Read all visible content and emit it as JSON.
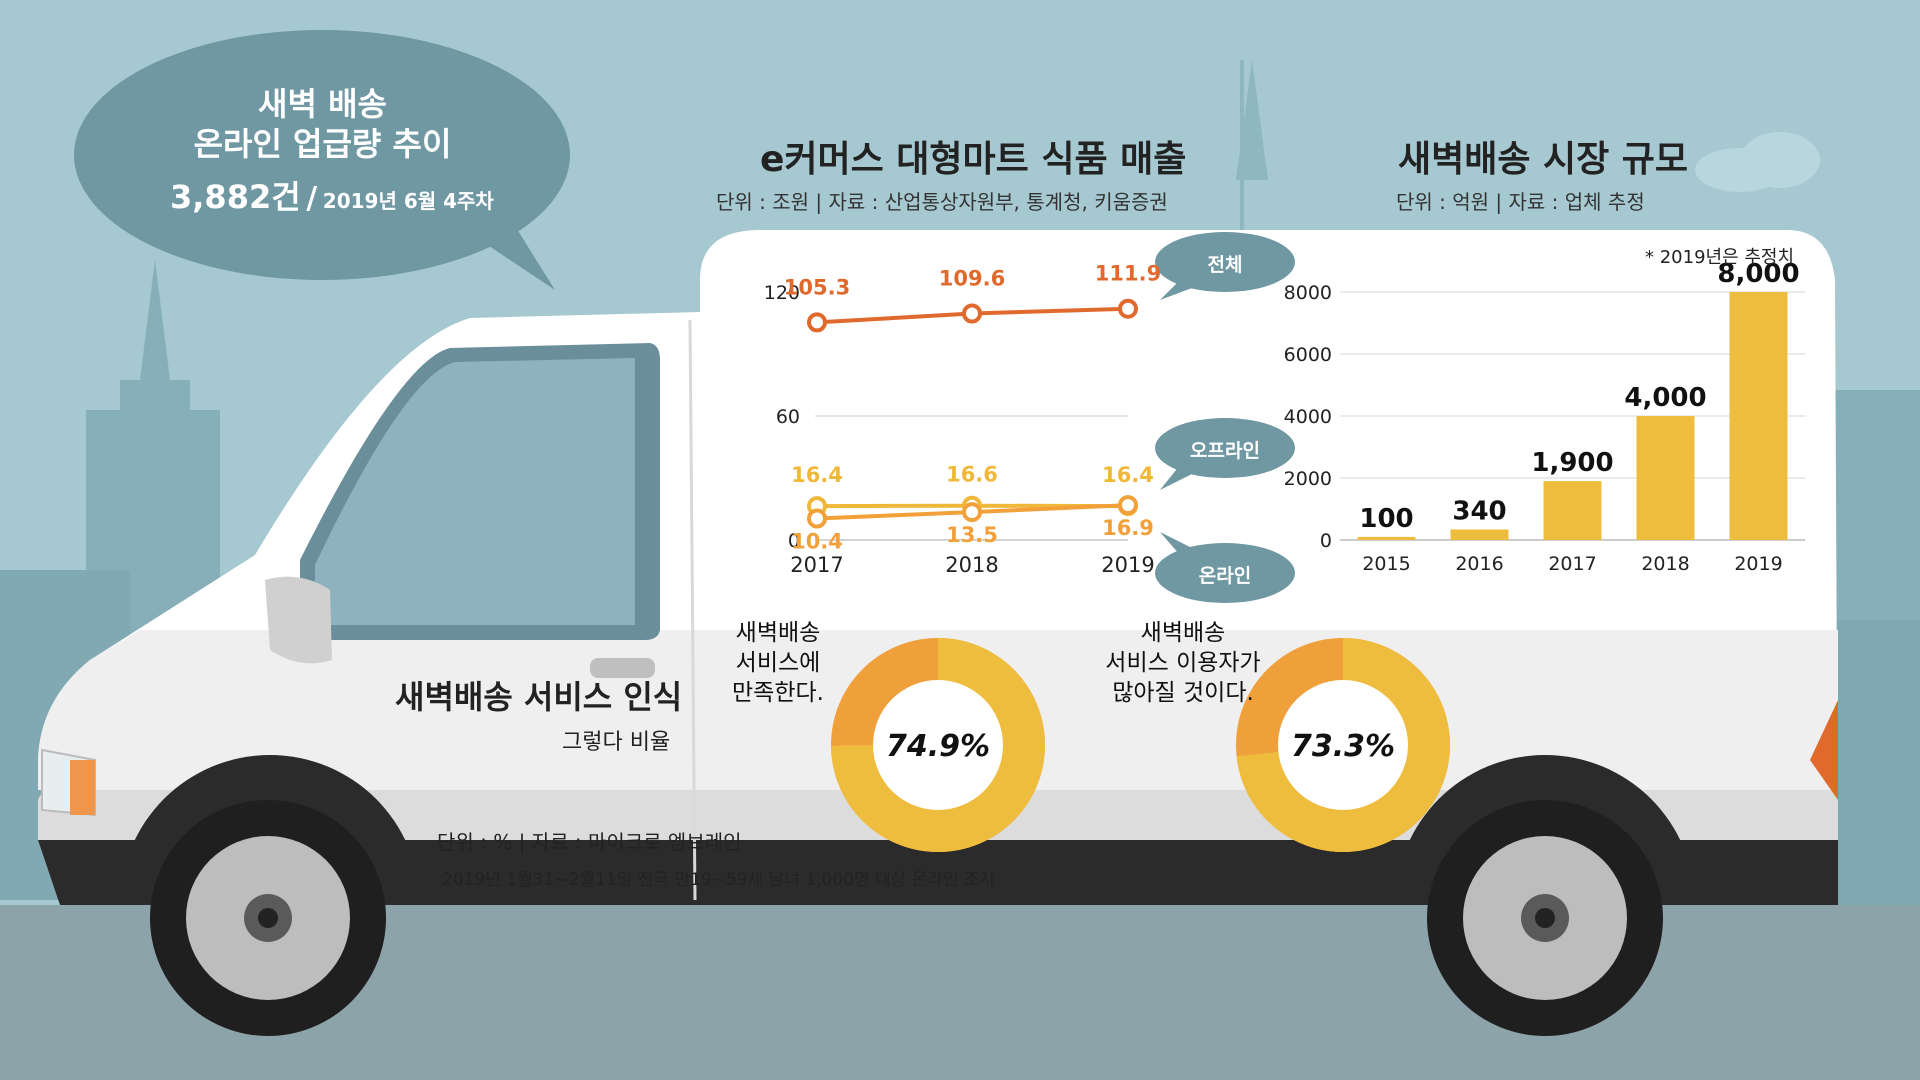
{
  "colors": {
    "sky": "#a5c8d1",
    "bubble": "#6f98a3",
    "total_line": "#e06a2d",
    "offline_line": "#f0b838",
    "online_line": "#f2a03a",
    "bar": "#efbd3e",
    "donut_main": "#efbd3e",
    "donut_rest": "#f0a03a"
  },
  "bubble": {
    "line1": "새벽 배송",
    "line2": "온라인 업급량 추이",
    "count": "3,882건",
    "slash": "/",
    "date": "2019년 6월 4주차"
  },
  "ecommerce": {
    "title": "e커머스 대형마트 식품 매출",
    "subtitle": "단위 : 조원  |   자료 : 산업통상자원부, 통계청, 키움증권"
  },
  "market": {
    "title": "새벽배송 시장 규모",
    "subtitle": "단위 : 억원  |   자료 : 업체 추정",
    "note": "* 2019년은 추정치"
  },
  "survey": {
    "title": "새벽배송 서비스 인식",
    "subtitle": "그렇다 비율",
    "source": "단위 : %  |  자료 : 마이크로 엠브레인",
    "footnote": "2019년 1월31~2월11일  전국 만19~59세 남녀 1,000명 대상 온라인 조사"
  },
  "chart_data": [
    {
      "type": "line",
      "x": [
        "2017",
        "2018",
        "2019"
      ],
      "yticks": [
        "120",
        "60",
        "0"
      ],
      "ylim": [
        0,
        120
      ],
      "series": [
        {
          "name": "전체",
          "values": [
            105.3,
            109.6,
            111.9
          ],
          "labels": [
            "105.3",
            "109.6",
            "111.9"
          ]
        },
        {
          "name": "오프라인",
          "values": [
            16.4,
            16.6,
            16.4
          ],
          "labels": [
            "16.4",
            "16.6",
            "16.4"
          ]
        },
        {
          "name": "온라인",
          "values": [
            10.4,
            13.5,
            16.9
          ],
          "labels": [
            "10.4",
            "13.5",
            "16.9"
          ]
        }
      ]
    },
    {
      "type": "bar",
      "categories": [
        "2015",
        "2016",
        "2017",
        "2018",
        "2019"
      ],
      "values": [
        100,
        340,
        1900,
        4000,
        8000
      ],
      "labels": [
        "100",
        "340",
        "1,900",
        "4,000",
        "8,000"
      ],
      "yticks": [
        "8000",
        "6000",
        "4000",
        "2000",
        "0"
      ],
      "ylim": [
        0,
        8000
      ],
      "grid": true
    },
    {
      "type": "pie",
      "donut": true,
      "question": "새벽배송\n서비스에\n만족한다.",
      "value": 74.9,
      "label": "74.9%"
    },
    {
      "type": "pie",
      "donut": true,
      "question": "새벽배송\n서비스 이용자가\n많아질 것이다.",
      "value": 73.3,
      "label": "73.3%"
    }
  ]
}
